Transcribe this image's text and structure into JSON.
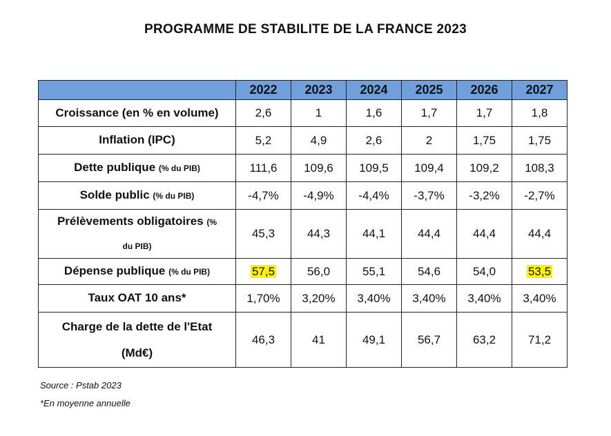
{
  "title": "PROGRAMME DE STABILITE DE LA FRANCE 2023",
  "columns": [
    "2022",
    "2023",
    "2024",
    "2025",
    "2026",
    "2027"
  ],
  "header_color": "#6fa0dc",
  "highlight_color": "#fff200",
  "rows": [
    {
      "label": "Croissance (en % en volume)",
      "label_small": "",
      "label_line2": "",
      "label_small2": "",
      "values": [
        "2,6",
        "1",
        "1,6",
        "1,7",
        "1,7",
        "1,8"
      ]
    },
    {
      "label": "Inflation (IPC)",
      "label_small": "",
      "label_line2": "",
      "label_small2": "",
      "values": [
        "5,2",
        "4,9",
        "2,6",
        "2",
        "1,75",
        "1,75"
      ]
    },
    {
      "label": "Dette publique",
      "label_small": "(% du PIB)",
      "label_line2": "",
      "label_small2": "",
      "values": [
        "111,6",
        "109,6",
        "109,5",
        "109,4",
        "109,2",
        "108,3"
      ]
    },
    {
      "label": "Solde public",
      "label_small": "(% du PIB)",
      "label_line2": "",
      "label_small2": "",
      "values": [
        "-4,7%",
        "-4,9%",
        "-4,4%",
        "-3,7%",
        "-3,2%",
        "-2,7%"
      ]
    },
    {
      "label": "Prélèvements obligatoires",
      "label_small": "(%",
      "label_line2": "",
      "label_small2": "du PIB)",
      "values": [
        "45,3",
        "44,3",
        "44,1",
        "44,4",
        "44,4",
        "44,4"
      ]
    },
    {
      "label": "Dépense publique",
      "label_small": "(% du PIB)",
      "label_line2": "",
      "label_small2": "",
      "values": [
        "57,5",
        "56,0",
        "55,1",
        "54,6",
        "54,0",
        "53,5"
      ],
      "highlighted": [
        "2022",
        "2027"
      ]
    },
    {
      "label": "Taux OAT 10 ans*",
      "label_small": "",
      "label_line2": "",
      "label_small2": "",
      "values": [
        "1,70%",
        "3,20%",
        "3,40%",
        "3,40%",
        "3,40%",
        "3,40%"
      ]
    },
    {
      "label": "Charge de la dette de l'Etat",
      "label_small": "",
      "label_line2": "(Md€)",
      "label_small2": "",
      "values": [
        "46,3",
        "41",
        "49,1",
        "56,7",
        "63,2",
        "71,2"
      ]
    }
  ],
  "notes": {
    "source": "Source : Pstab 2023",
    "footnote": "*En moyenne annuelle"
  }
}
